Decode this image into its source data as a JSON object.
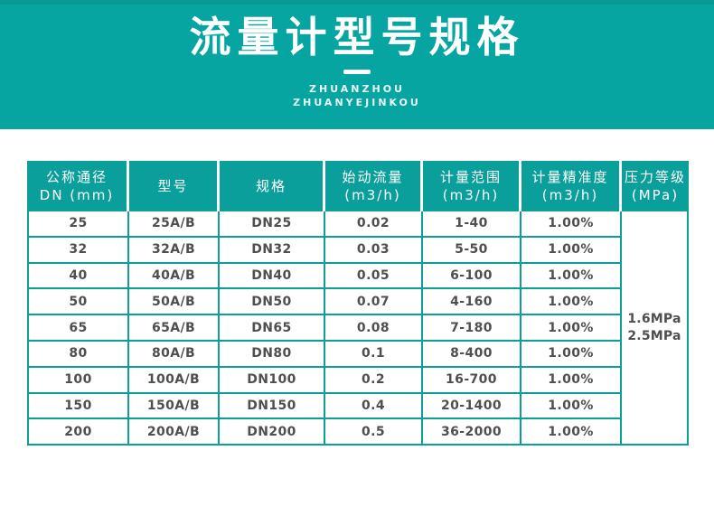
{
  "colors": {
    "banner_bg": "#06a5a1",
    "header_cell_bg": "#0a9f9a",
    "table_border": "#0b9f99",
    "body_text": "#4f4f4f",
    "header_text": "#ffffff"
  },
  "banner": {
    "title": "流量计型号规格",
    "subtitle": "ZHUANZHOU\nZHUANYEJINKOU"
  },
  "table": {
    "columns": [
      {
        "id": "dn",
        "label": "公称通径\nDN (mm)"
      },
      {
        "id": "model",
        "label": "型号"
      },
      {
        "id": "spec",
        "label": "规格"
      },
      {
        "id": "start_flow",
        "label": "始动流量\n(m3/h)"
      },
      {
        "id": "range",
        "label": "计量范围\n(m3/h)"
      },
      {
        "id": "accuracy",
        "label": "计量精准度\n(m3/h)"
      },
      {
        "id": "pressure",
        "label": "压力等级\n(MPa)"
      }
    ],
    "rows": [
      {
        "dn": "25",
        "model": "25A/B",
        "spec": "DN25",
        "start_flow": "0.02",
        "range": "1-40",
        "accuracy": "1.00%"
      },
      {
        "dn": "32",
        "model": "32A/B",
        "spec": "DN32",
        "start_flow": "0.03",
        "range": "5-50",
        "accuracy": "1.00%"
      },
      {
        "dn": "40",
        "model": "40A/B",
        "spec": "DN40",
        "start_flow": "0.05",
        "range": "6-100",
        "accuracy": "1.00%"
      },
      {
        "dn": "50",
        "model": "50A/B",
        "spec": "DN50",
        "start_flow": "0.07",
        "range": "4-160",
        "accuracy": "1.00%"
      },
      {
        "dn": "65",
        "model": "65A/B",
        "spec": "DN65",
        "start_flow": "0.08",
        "range": "7-180",
        "accuracy": "1.00%"
      },
      {
        "dn": "80",
        "model": "80A/B",
        "spec": "DN80",
        "start_flow": "0.1",
        "range": "8-400",
        "accuracy": "1.00%"
      },
      {
        "dn": "100",
        "model": "100A/B",
        "spec": "DN100",
        "start_flow": "0.2",
        "range": "16-700",
        "accuracy": "1.00%"
      },
      {
        "dn": "150",
        "model": "150A/B",
        "spec": "DN150",
        "start_flow": "0.4",
        "range": "20-1400",
        "accuracy": "1.00%"
      },
      {
        "dn": "200",
        "model": "200A/B",
        "spec": "DN200",
        "start_flow": "0.5",
        "range": "36-2000",
        "accuracy": "1.00%"
      }
    ],
    "pressure_rating": "1.6MPa\n2.5MPa"
  }
}
